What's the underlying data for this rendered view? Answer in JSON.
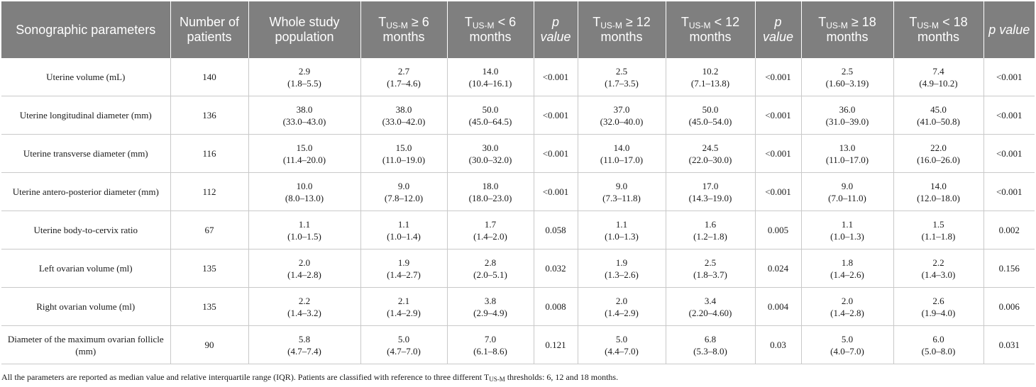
{
  "table": {
    "headers": [
      {
        "text": "Sonographic parameters"
      },
      {
        "text": "Number of patients"
      },
      {
        "text": "Whole study population"
      },
      {
        "pre": "T",
        "sub": "US-M",
        "post": " ≥ 6 months"
      },
      {
        "pre": "T",
        "sub": "US-M",
        "post": " < 6 months"
      },
      {
        "text": "p value",
        "italic": true
      },
      {
        "pre": "T",
        "sub": "US-M",
        "post": " ≥ 12 months"
      },
      {
        "pre": "T",
        "sub": "US-M",
        "post": " < 12 months"
      },
      {
        "text": "p value",
        "italic": true
      },
      {
        "pre": "T",
        "sub": "US-M",
        "post": " ≥ 18 months"
      },
      {
        "pre": "T",
        "sub": "US-M",
        "post": " < 18 months"
      },
      {
        "text": "p value",
        "italic": true
      }
    ],
    "rows": [
      {
        "param": "Uterine volume (mL)",
        "n": "140",
        "whole": [
          "2.9",
          "(1.8–5.5)"
        ],
        "ge6": [
          "2.7",
          "(1.7–4.6)"
        ],
        "lt6": [
          "14.0",
          "(10.4–16.1)"
        ],
        "p6": "<0.001",
        "ge12": [
          "2.5",
          "(1.7–3.5)"
        ],
        "lt12": [
          "10.2",
          "(7.1–13.8)"
        ],
        "p12": "<0.001",
        "ge18": [
          "2.5",
          "(1.60–3.19)"
        ],
        "lt18": [
          "7.4",
          "(4.9–10.2)"
        ],
        "p18": "<0.001"
      },
      {
        "param": "Uterine longitudinal diameter (mm)",
        "n": "136",
        "whole": [
          "38.0",
          "(33.0–43.0)"
        ],
        "ge6": [
          "38.0",
          "(33.0–42.0)"
        ],
        "lt6": [
          "50.0",
          "(45.0–64.5)"
        ],
        "p6": "<0.001",
        "ge12": [
          "37.0",
          "(32.0–40.0)"
        ],
        "lt12": [
          "50.0",
          "(45.0–54.0)"
        ],
        "p12": "<0.001",
        "ge18": [
          "36.0",
          "(31.0–39.0)"
        ],
        "lt18": [
          "45.0",
          "(41.0–50.8)"
        ],
        "p18": "<0.001"
      },
      {
        "param": "Uterine transverse diameter (mm)",
        "n": "116",
        "whole": [
          "15.0",
          "(11.4–20.0)"
        ],
        "ge6": [
          "15.0",
          "(11.0–19.0)"
        ],
        "lt6": [
          "30.0",
          "(30.0–32.0)"
        ],
        "p6": "<0.001",
        "ge12": [
          "14.0",
          "(11.0–17.0)"
        ],
        "lt12": [
          "24.5",
          "(22.0–30.0)"
        ],
        "p12": "<0.001",
        "ge18": [
          "13.0",
          "(11.0–17.0)"
        ],
        "lt18": [
          "22.0",
          "(16.0–26.0)"
        ],
        "p18": "<0.001"
      },
      {
        "param": "Uterine antero-posterior diameter (mm)",
        "n": "112",
        "whole": [
          "10.0",
          "(8.0–13.0)"
        ],
        "ge6": [
          "9.0",
          "(7.8–12.0)"
        ],
        "lt6": [
          "18.0",
          "(18.0–23.0)"
        ],
        "p6": "<0.001",
        "ge12": [
          "9.0",
          "(7.3–11.8)"
        ],
        "lt12": [
          "17.0",
          "(14.3–19.0)"
        ],
        "p12": "<0.001",
        "ge18": [
          "9.0",
          "(7.0–11.0)"
        ],
        "lt18": [
          "14.0",
          "(12.0–18.0)"
        ],
        "p18": "<0.001"
      },
      {
        "param": "Uterine body-to-cervix ratio",
        "n": "67",
        "whole": [
          "1.1",
          "(1.0–1.5)"
        ],
        "ge6": [
          "1.1",
          "(1.0–1.4)"
        ],
        "lt6": [
          "1.7",
          "(1.4–2.0)"
        ],
        "p6": "0.058",
        "ge12": [
          "1.1",
          "(1.0–1.3)"
        ],
        "lt12": [
          "1.6",
          "(1.2–1.8)"
        ],
        "p12": "0.005",
        "ge18": [
          "1.1",
          "(1.0–1.3)"
        ],
        "lt18": [
          "1.5",
          "(1.1–1.8)"
        ],
        "p18": "0.002"
      },
      {
        "param": "Left ovarian volume (ml)",
        "n": "135",
        "whole": [
          "2.0",
          "(1.4–2.8)"
        ],
        "ge6": [
          "1.9",
          "(1.4–2.7)"
        ],
        "lt6": [
          "2.8",
          "(2.0–5.1)"
        ],
        "p6": "0.032",
        "ge12": [
          "1.9",
          "(1.3–2.6)"
        ],
        "lt12": [
          "2.5",
          "(1.8–3.7)"
        ],
        "p12": "0.024",
        "ge18": [
          "1.8",
          "(1.4–2.6)"
        ],
        "lt18": [
          "2.2",
          "(1.4–3.0)"
        ],
        "p18": "0.156"
      },
      {
        "param": "Right ovarian volume (ml)",
        "n": "135",
        "whole": [
          "2.2",
          "(1.4–3.2)"
        ],
        "ge6": [
          "2.1",
          "(1.4–2.9)"
        ],
        "lt6": [
          "3.8",
          "(2.9–4.9)"
        ],
        "p6": "0.008",
        "ge12": [
          "2.0",
          "(1.4–2.9)"
        ],
        "lt12": [
          "3.4",
          "(2.20–4.60)"
        ],
        "p12": "0.004",
        "ge18": [
          "2.0",
          "(1.4–2.8)"
        ],
        "lt18": [
          "2.6",
          "(1.9–4.0)"
        ],
        "p18": "0.006"
      },
      {
        "param": "Diameter of the maximum ovarian follicle (mm)",
        "n": "90",
        "whole": [
          "5.8",
          "(4.7–7.4)"
        ],
        "ge6": [
          "5.0",
          "(4.7–7.0)"
        ],
        "lt6": [
          "7.0",
          "(6.1–8.6)"
        ],
        "p6": "0.121",
        "ge12": [
          "5.0",
          "(4.4–7.0)"
        ],
        "lt12": [
          "6.8",
          "(5.3–8.0)"
        ],
        "p12": "0.03",
        "ge18": [
          "5.0",
          "(4.0–7.0)"
        ],
        "lt18": [
          "6.0",
          "(5.0–8.0)"
        ],
        "p18": "0.031"
      }
    ]
  },
  "footnote": {
    "before": "All the parameters are reported as median value and relative interquartile range (IQR). Patients are classified with reference to three different T",
    "sub": "US-M",
    "after": " thresholds: 6, 12 and 18 months."
  }
}
